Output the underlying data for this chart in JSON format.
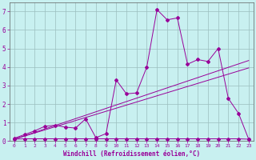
{
  "xlabel": "Windchill (Refroidissement éolien,°C)",
  "background_color": "#c8f0f0",
  "grid_color": "#b0d8d8",
  "line_color": "#990099",
  "xlim": [
    -0.5,
    23.5
  ],
  "ylim": [
    0,
    7.5
  ],
  "xticks": [
    0,
    1,
    2,
    3,
    4,
    5,
    6,
    7,
    8,
    9,
    10,
    11,
    12,
    13,
    14,
    15,
    16,
    17,
    18,
    19,
    20,
    21,
    22,
    23
  ],
  "yticks": [
    0,
    1,
    2,
    3,
    4,
    5,
    6,
    7
  ],
  "series1_x": [
    0,
    1,
    2,
    3,
    4,
    5,
    6,
    7,
    8,
    9,
    10,
    11,
    12,
    13,
    14,
    15,
    16,
    17,
    18,
    19,
    20,
    21,
    22,
    23
  ],
  "series1_y": [
    0.15,
    0.35,
    0.55,
    0.8,
    0.85,
    0.75,
    0.7,
    1.2,
    0.18,
    0.4,
    3.3,
    2.55,
    2.6,
    4.0,
    7.1,
    6.55,
    6.65,
    4.15,
    4.4,
    4.3,
    5.0,
    2.3,
    1.5,
    0.1
  ],
  "series2_x": [
    0,
    1,
    2,
    3,
    4,
    5,
    6,
    7,
    8,
    9,
    10,
    11,
    12,
    13,
    14,
    15,
    16,
    17,
    18,
    19,
    20,
    21,
    22,
    23
  ],
  "series2_y": [
    0.1,
    0.12,
    0.12,
    0.12,
    0.12,
    0.12,
    0.12,
    0.12,
    0.12,
    0.12,
    0.12,
    0.12,
    0.12,
    0.12,
    0.12,
    0.12,
    0.12,
    0.12,
    0.12,
    0.12,
    0.12,
    0.12,
    0.12,
    0.1
  ],
  "series3_x": [
    0,
    23
  ],
  "series3_y": [
    0.1,
    4.35
  ],
  "series4_x": [
    0,
    23
  ],
  "series4_y": [
    0.1,
    3.95
  ]
}
